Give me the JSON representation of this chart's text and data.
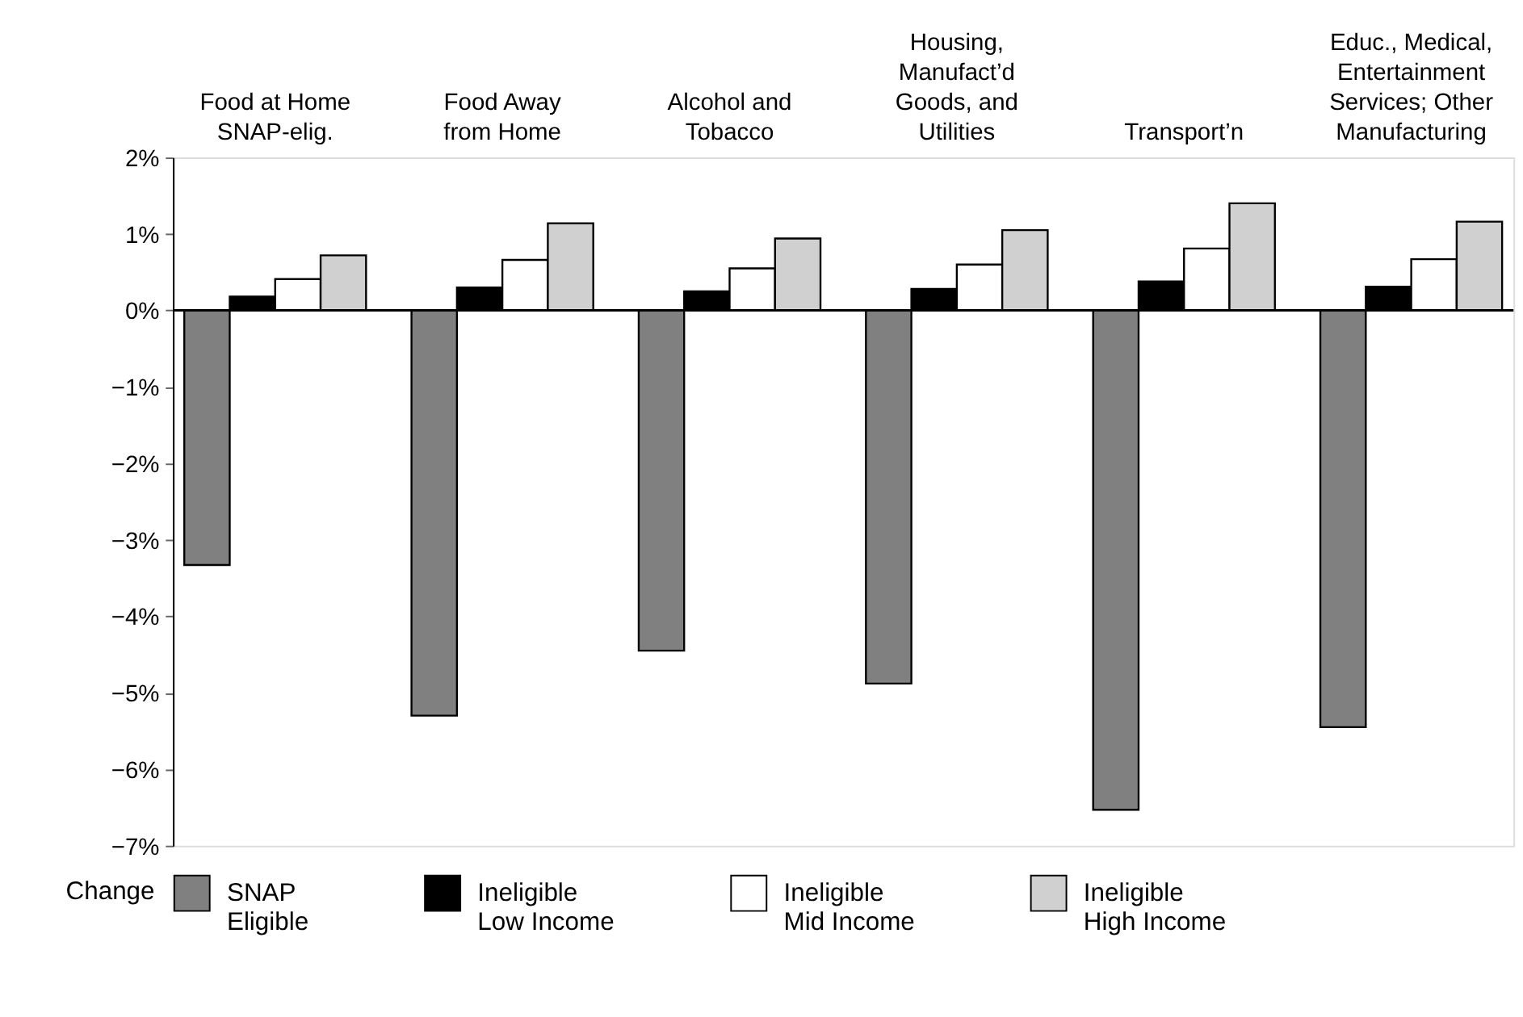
{
  "chart_data": {
    "type": "bar",
    "categories": [
      "Food at Home\nSNAP-elig.",
      "Food Away\nfrom Home",
      "Alcohol and\nTobacco",
      "Housing,\nManufact’d\nGoods, and\nUtilities",
      "Transport’n",
      "Educ., Medical,\nEntertainment\nServices; Other\nManufacturing"
    ],
    "series": [
      {
        "name": "SNAP\nEligible",
        "color": "#808080",
        "values": [
          -3.33,
          -5.3,
          -4.45,
          -4.88,
          -6.53,
          -5.45
        ]
      },
      {
        "name": "Ineligible\nLow Income",
        "color": "#000000",
        "values": [
          0.18,
          0.3,
          0.25,
          0.28,
          0.38,
          0.31
        ]
      },
      {
        "name": "Ineligible\nMid Income",
        "color": "#ffffff",
        "values": [
          0.41,
          0.66,
          0.55,
          0.6,
          0.81,
          0.67
        ]
      },
      {
        "name": "Ineligible\nHigh Income",
        "color": "#d0d0d0",
        "values": [
          0.72,
          1.14,
          0.94,
          1.05,
          1.4,
          1.16
        ]
      }
    ],
    "ylabel": "Change",
    "ylim": [
      -7,
      2
    ],
    "yticks": [
      {
        "value": 2,
        "label": "2%"
      },
      {
        "value": 1,
        "label": "1%"
      },
      {
        "value": 0,
        "label": "0%"
      },
      {
        "value": -1,
        "label": "−1%"
      },
      {
        "value": -2,
        "label": "−2%"
      },
      {
        "value": -3,
        "label": "−3%"
      },
      {
        "value": -4,
        "label": "−4%"
      },
      {
        "value": -5,
        "label": "−5%"
      },
      {
        "value": -6,
        "label": "−6%"
      },
      {
        "value": -7,
        "label": "−7%"
      }
    ],
    "ref_lines": [
      {
        "axis": "y",
        "value": 0,
        "color": "#000000"
      }
    ],
    "grid": false,
    "legend": "bottom"
  }
}
